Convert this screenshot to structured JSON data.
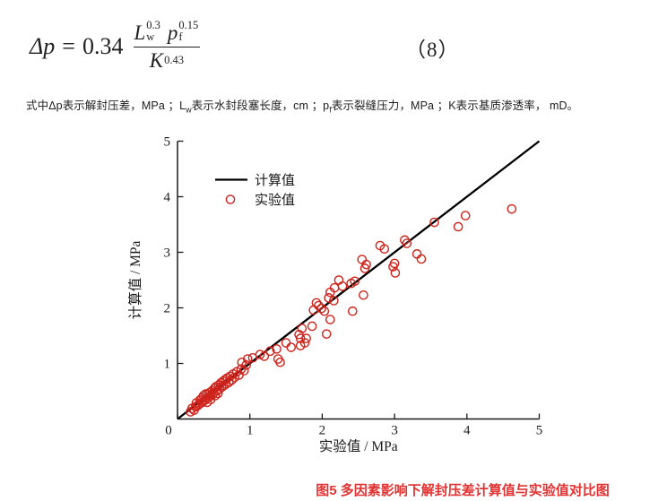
{
  "formula": {
    "lhs": "Δp",
    "equals": "=",
    "coefficient": "0.34",
    "num_base1": "L",
    "num_sub1": "w",
    "num_exp1": "0.3",
    "num_base2": "p",
    "num_sub2": "f",
    "num_exp2": "0.15",
    "den_base": "K",
    "den_exp": "0.43",
    "eq_number": "（8）"
  },
  "description": {
    "part1": "式中Δp表示解封压差，MPa ；L",
    "sub1": "w",
    "part2": "表示水封段塞长度，cm ；p",
    "sub2": "f",
    "part3": "表示裂缝压力，MPa ；K表示基质渗透率， mD。"
  },
  "caption": {
    "text": "图5 多因素影响下解封压差计算值与实验值对比图"
  },
  "chart_data": {
    "type": "scatter",
    "title": "",
    "xlabel": "实验值 / MPa",
    "ylabel": "计算值 / MPa",
    "xlim": [
      0,
      5
    ],
    "ylim": [
      0,
      5
    ],
    "xticks": [
      0,
      1,
      2,
      3,
      4,
      5
    ],
    "yticks": [
      1,
      2,
      3,
      4,
      5
    ],
    "grid": false,
    "legend_position": "upper-left-inside",
    "axis_color": "#1a1a1a",
    "line_series": {
      "name": "计算值",
      "color": "#000000",
      "points": [
        [
          0,
          0
        ],
        [
          5,
          5
        ]
      ]
    },
    "scatter_series": {
      "name": "实验值",
      "color": "#cd241c",
      "marker": "open-circle",
      "points": [
        [
          0.18,
          0.13
        ],
        [
          0.2,
          0.19
        ],
        [
          0.23,
          0.16
        ],
        [
          0.25,
          0.22
        ],
        [
          0.26,
          0.29
        ],
        [
          0.28,
          0.24
        ],
        [
          0.3,
          0.27
        ],
        [
          0.31,
          0.34
        ],
        [
          0.33,
          0.29
        ],
        [
          0.34,
          0.38
        ],
        [
          0.35,
          0.31
        ],
        [
          0.36,
          0.42
        ],
        [
          0.38,
          0.34
        ],
        [
          0.39,
          0.45
        ],
        [
          0.4,
          0.37
        ],
        [
          0.41,
          0.3
        ],
        [
          0.42,
          0.44
        ],
        [
          0.43,
          0.39
        ],
        [
          0.45,
          0.48
        ],
        [
          0.45,
          0.41
        ],
        [
          0.46,
          0.35
        ],
        [
          0.48,
          0.51
        ],
        [
          0.48,
          0.44
        ],
        [
          0.5,
          0.47
        ],
        [
          0.51,
          0.55
        ],
        [
          0.52,
          0.42
        ],
        [
          0.53,
          0.58
        ],
        [
          0.55,
          0.51
        ],
        [
          0.56,
          0.46
        ],
        [
          0.57,
          0.61
        ],
        [
          0.58,
          0.54
        ],
        [
          0.6,
          0.65
        ],
        [
          0.61,
          0.57
        ],
        [
          0.63,
          0.68
        ],
        [
          0.64,
          0.6
        ],
        [
          0.66,
          0.71
        ],
        [
          0.67,
          0.63
        ],
        [
          0.69,
          0.74
        ],
        [
          0.71,
          0.66
        ],
        [
          0.73,
          0.77
        ],
        [
          0.75,
          0.7
        ],
        [
          0.77,
          0.81
        ],
        [
          0.79,
          0.75
        ],
        [
          0.82,
          0.85
        ],
        [
          0.85,
          0.79
        ],
        [
          0.88,
          0.9
        ],
        [
          0.92,
          0.87
        ],
        [
          0.95,
          0.97
        ],
        [
          0.89,
          1.02
        ],
        [
          0.97,
          1.08
        ],
        [
          1.04,
          1.1
        ],
        [
          1.14,
          1.16
        ],
        [
          1.2,
          1.13
        ],
        [
          1.28,
          1.22
        ],
        [
          1.37,
          1.26
        ],
        [
          1.39,
          1.08
        ],
        [
          1.42,
          1.02
        ],
        [
          1.5,
          1.37
        ],
        [
          1.57,
          1.29
        ],
        [
          1.7,
          1.32
        ],
        [
          1.76,
          1.37
        ],
        [
          1.7,
          1.45
        ],
        [
          1.78,
          1.45
        ],
        [
          1.68,
          1.52
        ],
        [
          1.72,
          1.63
        ],
        [
          1.86,
          1.67
        ],
        [
          2.06,
          1.53
        ],
        [
          2.11,
          1.79
        ],
        [
          1.88,
          1.96
        ],
        [
          1.92,
          2.09
        ],
        [
          1.95,
          2.04
        ],
        [
          1.99,
          1.99
        ],
        [
          2.03,
          1.94
        ],
        [
          2.09,
          2.18
        ],
        [
          2.16,
          2.13
        ],
        [
          2.11,
          2.28
        ],
        [
          2.17,
          2.36
        ],
        [
          2.23,
          2.5
        ],
        [
          2.28,
          2.39
        ],
        [
          2.4,
          2.44
        ],
        [
          2.45,
          2.48
        ],
        [
          2.42,
          1.94
        ],
        [
          2.57,
          2.23
        ],
        [
          2.55,
          2.87
        ],
        [
          2.61,
          2.78
        ],
        [
          2.59,
          2.71
        ],
        [
          2.98,
          2.74
        ],
        [
          3.0,
          2.8
        ],
        [
          3.01,
          2.63
        ],
        [
          2.8,
          3.12
        ],
        [
          2.86,
          3.06
        ],
        [
          3.14,
          3.22
        ],
        [
          3.17,
          3.16
        ],
        [
          3.31,
          2.97
        ],
        [
          3.37,
          2.88
        ],
        [
          3.55,
          3.54
        ],
        [
          3.88,
          3.46
        ],
        [
          3.98,
          3.66
        ],
        [
          4.62,
          3.78
        ]
      ]
    }
  }
}
